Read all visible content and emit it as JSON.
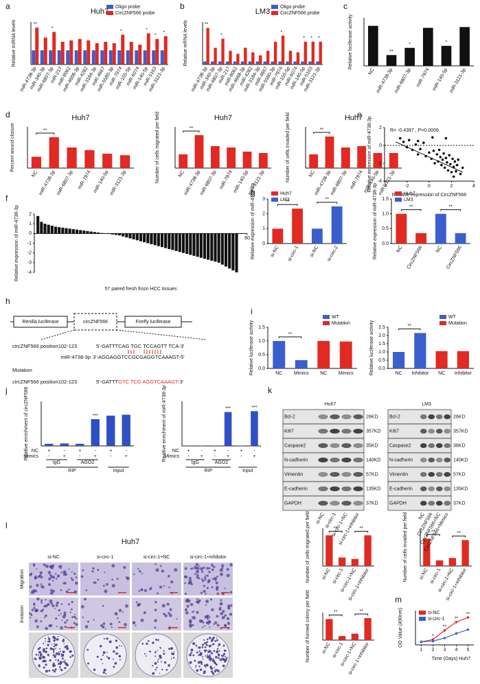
{
  "panel_labels": [
    "a",
    "b",
    "c",
    "d",
    "e",
    "f",
    "g",
    "h",
    "i",
    "j",
    "k",
    "l",
    "m"
  ],
  "chart_data": [
    {
      "type": "bar",
      "title": "Huh7",
      "ylabel": "Relative miRNA levels",
      "categories": [
        "miR-4738-3p",
        "miR-340-3p",
        "miR-6807-3p",
        "miR-217",
        "miR-8062",
        "miR-4668-3p",
        "miR-4282",
        "miR-3184-3p",
        "miR-4667",
        "miR-5580-3p",
        "miR-7974",
        "miR-155-5p",
        "miR-6074",
        "miR-140-5p",
        "miR-5163",
        "miR-3121-3p"
      ],
      "series": [
        {
          "name": "Oligo probe",
          "color": "#3a5fcd",
          "values": [
            1,
            1,
            1,
            1,
            1,
            1,
            1,
            1,
            1,
            1,
            1,
            1,
            1,
            1,
            1,
            1
          ]
        },
        {
          "name": "CircZNF566 probe",
          "color": "#e02a22",
          "values": [
            2.6,
            1.9,
            2.3,
            1.6,
            1.7,
            1.8,
            1.7,
            1.5,
            1.6,
            1.5,
            2.1,
            1.6,
            1.4,
            2.2,
            1.8,
            2.0
          ]
        }
      ],
      "ylim": [
        0,
        3
      ],
      "significance": [
        "**",
        null,
        "*",
        null,
        null,
        null,
        null,
        null,
        null,
        null,
        "*",
        null,
        null,
        "*",
        "*",
        "*"
      ]
    },
    {
      "type": "bar",
      "title": "LM3",
      "ylabel": "Relative mRNA levels",
      "categories": [
        "miR-4738-3p",
        "miR-340-3p",
        "miR-6807-3p",
        "miR-217",
        "miR-8062",
        "miR-4668-3p",
        "miR-4282",
        "miR-3184-3p",
        "miR-4667",
        "miR-5580-3p",
        "miR-7974",
        "miR-155-5p",
        "miR-6074",
        "miR-140-5p",
        "miR-5163",
        "miR-3121-3p"
      ],
      "series": [
        {
          "name": "Oligo probe",
          "color": "#3a5fcd",
          "values": [
            1,
            1,
            1,
            1,
            1,
            1,
            1,
            1,
            1,
            1,
            1,
            1,
            1,
            1,
            1,
            1
          ]
        },
        {
          "name": "CircZNF566 probe",
          "color": "#e02a22",
          "values": [
            3.2,
            1.9,
            2.5,
            1.7,
            1.5,
            1.9,
            1.6,
            1.4,
            1.7,
            2.3,
            2.7,
            1.7,
            1.6,
            2.3,
            2.3,
            2.3
          ]
        }
      ],
      "ylim": [
        0.8,
        3.6
      ],
      "significance": [
        "**",
        null,
        "*",
        null,
        null,
        null,
        null,
        null,
        null,
        null,
        "*",
        null,
        null,
        "*",
        "*",
        "*"
      ]
    },
    {
      "type": "bar",
      "ylabel": "Relative luciferase activity",
      "categories": [
        "NC",
        "miR-4738-3p",
        "miR-6807-3p",
        "miR-7974",
        "miR-140-5p",
        "miR-3121-3p"
      ],
      "values": [
        1.0,
        0.27,
        0.45,
        0.95,
        0.5,
        0.97
      ],
      "color": "#111111",
      "ylim": [
        0,
        1.2
      ],
      "significance": [
        null,
        "**",
        "*",
        null,
        "*",
        null
      ]
    },
    {
      "type": "bar",
      "title": "Huh7",
      "ylabel": "Percent wound closure",
      "categories": [
        "NC",
        "miR-4738-3p",
        "miR-6807-3p",
        "miR-7974",
        "miR-140-5p",
        "miR-3121-3p"
      ],
      "values": [
        0.22,
        0.6,
        0.4,
        0.35,
        0.28,
        0.25
      ],
      "color": "#e02a22",
      "ylim": [
        0,
        0.8
      ],
      "brackets": [
        "**"
      ]
    },
    {
      "type": "bar",
      "title": "Huh7",
      "ylabel": "Number of cells migrated per field",
      "categories": [
        "NC",
        "miR-4738-3p",
        "miR-6807-3p",
        "miR-7974",
        "miR-140-5p",
        "miR-3121-3p"
      ],
      "values": [
        50,
        120,
        80,
        75,
        60,
        55
      ],
      "color": "#e02a22",
      "ylim": [
        0,
        150
      ],
      "brackets": [
        "**"
      ]
    },
    {
      "type": "bar",
      "title": "Huh7",
      "ylabel": "Number of cells invaded per field",
      "categories": [
        "NC",
        "miR-4738-3p",
        "miR-6807-3p",
        "miR-7974",
        "miR-140-5p",
        "miR-3121-3p"
      ],
      "values": [
        50,
        115,
        75,
        80,
        55,
        55
      ],
      "color": "#e02a22",
      "ylim": [
        0,
        150
      ],
      "brackets": [
        "**"
      ]
    },
    {
      "type": "scatter",
      "annotation": "R= -0.4397 , P=0.0006",
      "xlabel": "Relative expression of CircZNF566",
      "ylabel": "Relative expression of miR-4738-3p",
      "x": [
        -2.6,
        -2.3,
        -2.0,
        -1.8,
        -1.5,
        -1.2,
        -1.0,
        -0.8,
        -0.5,
        -0.3,
        0,
        0.2,
        0.4,
        0.5,
        0.7,
        0.8,
        0.9,
        1.0,
        1.1,
        1.2,
        1.3,
        1.4,
        1.5,
        1.6,
        1.7,
        1.8,
        1.9,
        2.0,
        2.1,
        2.2,
        2.3,
        2.4,
        2.5,
        2.6,
        2.8,
        3.0,
        -1.0,
        0.3,
        1.5,
        2.2
      ],
      "y": [
        0.8,
        0.4,
        -0.2,
        0.6,
        -0.5,
        0.1,
        -1.0,
        -0.4,
        0.3,
        -1.2,
        -0.8,
        -1.5,
        -0.6,
        -2.0,
        -1.0,
        -1.8,
        -0.5,
        -1.3,
        -2.2,
        -1.6,
        -0.9,
        -2.5,
        -1.4,
        -1.9,
        -2.8,
        -1.1,
        -2.1,
        -3.0,
        -1.5,
        -2.4,
        -1.8,
        -2.9,
        -2.2,
        -1.6,
        -3.2,
        -2.5,
        0.5,
        0.9,
        0.8,
        -3.5
      ],
      "color": "#111111",
      "trendline": {
        "x": [
          -3,
          3
        ],
        "y": [
          0.4,
          -3.0
        ]
      },
      "xlim": [
        -4,
        4
      ],
      "xticks": [
        -4,
        -2,
        0,
        2,
        4
      ],
      "ylim": [
        -4,
        2
      ],
      "yticks": [
        -4,
        -2,
        0,
        2
      ]
    },
    {
      "type": "bar",
      "ylabel": "Relative expression of miR-4738-3p",
      "xlabel": "57 paired fresh frozn HCC tissues",
      "values": [
        1.8,
        1.2,
        1.0,
        0.9,
        0.8,
        0.7,
        0.65,
        0.6,
        0.55,
        0.5,
        0.45,
        0.4,
        0.35,
        0.3,
        0.25,
        0.2,
        0.15,
        0.1,
        0.05,
        0.02,
        -0.05,
        -0.1,
        -0.15,
        -0.2,
        -0.3,
        -0.4,
        -0.5,
        -0.6,
        -0.7,
        -0.8,
        -0.9,
        -1.0,
        -1.1,
        -1.2,
        -1.3,
        -1.4,
        -1.5,
        -1.6,
        -1.7,
        -1.8,
        -1.9,
        -2.0,
        -2.1,
        -2.2,
        -2.3,
        -2.4,
        -2.5,
        -2.6,
        -2.7,
        -2.8,
        -2.9,
        -3.0,
        -3.2,
        -3.4,
        -3.6,
        -3.8,
        -4.0
      ],
      "color": "#111111",
      "xlim": [
        0,
        60
      ],
      "xticks": [
        60
      ],
      "ylim": [
        -4,
        2
      ],
      "yticks": [
        -4,
        -3,
        -2,
        -1,
        0,
        1,
        2
      ]
    },
    {
      "type": "bar",
      "ylabel": "Relative expression of miR-4738-3p",
      "categories": [
        "si-NC",
        "si-circ-1",
        "si-NC",
        "si-circ-2"
      ],
      "series": [
        {
          "name": "Huh7",
          "color": "#e02a22",
          "values": [
            1.0,
            2.35,
            null,
            null
          ]
        },
        {
          "name": "LM3",
          "color": "#3a5fcd",
          "values": [
            null,
            null,
            1.0,
            2.5
          ]
        }
      ],
      "ylim": [
        0,
        3
      ],
      "yticks": [
        0,
        1,
        2,
        3
      ],
      "brackets": [
        "**",
        "**"
      ]
    },
    {
      "type": "bar",
      "ylabel": "Relative expression of miR-4738-3p",
      "categories": [
        "NC",
        "CircZNF566",
        "NC",
        "CircZNF566"
      ],
      "series": [
        {
          "name": "Huh7",
          "color": "#e02a22",
          "values": [
            1.0,
            0.35,
            null,
            null
          ]
        },
        {
          "name": "LM3",
          "color": "#3a5fcd",
          "values": [
            null,
            null,
            1.0,
            0.35
          ]
        }
      ],
      "ylim": [
        0,
        1.5
      ],
      "yticks": [
        {
          "value": 0,
          "label": "0.0"
        },
        {
          "value": 0.5,
          "label": "0.5"
        },
        {
          "value": 1,
          "label": "1.0"
        },
        {
          "value": 1.5,
          "label": "1.5"
        }
      ],
      "brackets": [
        "**",
        "**"
      ]
    },
    {
      "type": "bar",
      "ylabel": "Relative luciferase activity",
      "categories": [
        "NC",
        "Mimics",
        "NC",
        "Mimics"
      ],
      "series": [
        {
          "name": "WT",
          "color": "#3a5fcd",
          "values": [
            1.0,
            0.3,
            null,
            null
          ]
        },
        {
          "name": "Mutation",
          "color": "#e02a22",
          "values": [
            null,
            null,
            1.0,
            0.98
          ]
        }
      ],
      "ylim": [
        0,
        1.5
      ],
      "yticks": [
        {
          "value": 0,
          "label": "0.0"
        },
        {
          "value": 0.5,
          "label": "0.5"
        },
        {
          "value": 1,
          "label": "1.0"
        },
        {
          "value": 1.5,
          "label": "1.5"
        }
      ],
      "brackets": [
        "**"
      ]
    },
    {
      "type": "bar",
      "ylabel": "Relative luciferase activity",
      "categories": [
        "NC",
        "Inhibitor",
        "NC",
        "Inhibitor"
      ],
      "series": [
        {
          "name": "WT",
          "color": "#3a5fcd",
          "values": [
            1.0,
            2.15,
            null,
            null
          ]
        },
        {
          "name": "Mutation",
          "color": "#e02a22",
          "values": [
            null,
            null,
            1.05,
            1.05
          ]
        }
      ],
      "ylim": [
        0,
        2.5
      ],
      "yticks": [
        {
          "value": 0,
          "label": "0.0"
        },
        {
          "value": 0.5,
          "label": "0.5"
        },
        {
          "value": 1,
          "label": "1.0"
        },
        {
          "value": 1.5,
          "label": "1.5"
        },
        {
          "value": 2,
          "label": "2.0"
        },
        {
          "value": 2.5,
          "label": "2.5"
        }
      ],
      "brackets": [
        "**"
      ]
    },
    {
      "type": "bar",
      "ylabel": "Realtive enrichment of circZNF566",
      "values": [
        1.2,
        1.4,
        1.2,
        15,
        17,
        17.5
      ],
      "color": "#2f4fc4",
      "ylim": [
        0,
        25
      ],
      "significance": [
        null,
        null,
        null,
        "***",
        null,
        null
      ],
      "treatments": [
        {
          "label": "NC",
          "signs": [
            "+",
            "-",
            "+",
            "-",
            "+",
            "-"
          ]
        },
        {
          "label": "Mimics",
          "signs": [
            "-",
            "+",
            "-",
            "+",
            "-",
            "+"
          ]
        }
      ],
      "groups": [
        "IgG",
        "AGO2"
      ],
      "sections": [
        "RIP",
        "Input"
      ]
    },
    {
      "type": "bar",
      "ylabel": "Realtive enrichment of miR-4738-3p",
      "values": [
        1.0,
        1.2,
        1.0,
        190,
        1.5,
        195
      ],
      "color": "#2f4fc4",
      "ylim": [
        0,
        250
      ],
      "significance": [
        null,
        null,
        null,
        "***",
        null,
        "***"
      ],
      "treatments": [
        {
          "label": "NC",
          "signs": [
            "+",
            "-",
            "+",
            "-",
            "+",
            "-"
          ]
        },
        {
          "label": "Mimics",
          "signs": [
            "-",
            "+",
            "-",
            "+",
            "-",
            "+"
          ]
        }
      ],
      "groups": [
        "IgG",
        "AGO2"
      ],
      "sections": [
        "RIP",
        "Input"
      ]
    },
    {
      "type": "bar",
      "ylabel": "Number of cells migrated per field",
      "categories": [
        "si-NC",
        "si-circ-1",
        "si-circ-1+NC",
        "si-circ-1+inhibitor"
      ],
      "values": [
        65,
        18,
        15,
        65
      ],
      "color": "#e02a22",
      "ylim": [
        0,
        80
      ],
      "brackets": [
        "**",
        "**"
      ]
    },
    {
      "type": "bar",
      "ylabel": "Number of cells invaded per field",
      "categories": [
        "si-NC",
        "si-circ-1",
        "si-circ-1+NC",
        "si-circ-1+inhibitor"
      ],
      "values": [
        58,
        12,
        17,
        55
      ],
      "color": "#e02a22",
      "ylim": [
        0,
        80
      ],
      "brackets": [
        "**",
        "**"
      ]
    },
    {
      "type": "bar",
      "ylabel": "Number of formed colony per field",
      "categories": [
        "si-NC",
        "si-circ-1",
        "si-circ-1+NC",
        "si-circ-1+inhibitor"
      ],
      "values": [
        115,
        22,
        35,
        120
      ],
      "color": "#e02a22",
      "ylim": [
        0,
        150
      ],
      "brackets": [
        "**",
        "**"
      ]
    },
    {
      "type": "line",
      "ylabel": "OD Value (490nm)",
      "xlabel": "Time (Days)",
      "note": "Huh7",
      "x": [
        1,
        2,
        3,
        4,
        5
      ],
      "series": [
        {
          "name": "si-NC",
          "color": "#e02a22",
          "values": [
            0.4,
            0.7,
            1.9,
            3.0,
            3.6
          ]
        },
        {
          "name": "si-circ-1",
          "color": "#3a5fcd",
          "values": [
            0.4,
            0.5,
            0.9,
            1.5,
            2.0
          ]
        }
      ],
      "xlim": [
        0.5,
        5.5
      ],
      "xticks": [
        1,
        2,
        3,
        4,
        5
      ],
      "ylim": [
        0,
        4.5
      ],
      "significance": [
        null,
        "*",
        "**",
        "**",
        "**"
      ]
    }
  ],
  "diagram_h": {
    "boxes": [
      "Renilla luciferase",
      "circZNF566",
      "Firefly luciferase"
    ],
    "site_label": "circZNF566 position102-123",
    "wt_seq": "5'-GATTTCAG  TGC TCCAGTT TCA-3'",
    "mirna_label": "miR-4738-3p",
    "mirna_seq": "3'-AGGAGGTCCGCGAGGTCAAAGT-5'",
    "mutation_title": "Mutation",
    "mut_seq": [
      "5'-GATTT",
      "GTC TCG AGGTCAAAGT",
      "-3'"
    ]
  },
  "blots_k": [
    {
      "title": "Huh7",
      "rows": [
        {
          "label": "Bcl-2",
          "size": "26KD"
        },
        {
          "label": "Ki67",
          "size": "357KD"
        },
        {
          "label": "Caspase2",
          "size": "35KD"
        },
        {
          "label": "N-cadherin",
          "size": "140KD"
        },
        {
          "label": "Vimentin",
          "size": "57KD"
        },
        {
          "label": "E-cadherin",
          "size": "135KD"
        },
        {
          "label": "GAPDH",
          "size": "37KD"
        }
      ],
      "lanes": [
        "si-NC",
        "si-circ-1",
        "si-circ-1+NC",
        "si-circ-1+inhibitor"
      ]
    },
    {
      "title": "LM3",
      "rows": [
        {
          "label": "Bcl-2",
          "size": "26KD"
        },
        {
          "label": "Ki67",
          "size": "357KD"
        },
        {
          "label": "Caspase2",
          "size": "36KD"
        },
        {
          "label": "N-cadherin",
          "size": "140KD"
        },
        {
          "label": "Vimentin",
          "size": "57KD"
        },
        {
          "label": "E-cadherin",
          "size": "135KD"
        },
        {
          "label": "GAPDH",
          "size": "37KD"
        }
      ],
      "lanes": [
        "NC",
        "CircZNF566",
        "CircZNF566+NC",
        "CircZNF566+Mimics"
      ]
    }
  ],
  "images_l": {
    "title": "Huh7",
    "columns": [
      "si-NC",
      "si-circ-1",
      "si-circ-1+NC",
      "si-circ-1+inhibitor"
    ],
    "rows": [
      "Migration",
      "Invasion"
    ]
  }
}
